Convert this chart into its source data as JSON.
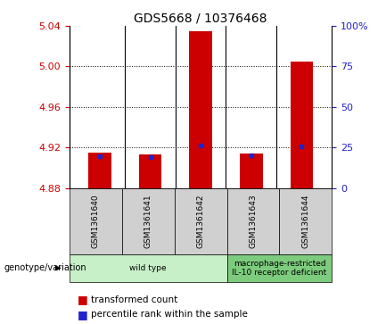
{
  "title": "GDS5668 / 10376468",
  "samples": [
    "GSM1361640",
    "GSM1361641",
    "GSM1361642",
    "GSM1361643",
    "GSM1361644"
  ],
  "red_values": [
    4.915,
    4.913,
    5.035,
    4.914,
    5.005
  ],
  "blue_values": [
    4.9115,
    4.9105,
    4.922,
    4.912,
    4.921
  ],
  "y_min": 4.88,
  "y_max": 5.04,
  "y_ticks": [
    4.88,
    4.92,
    4.96,
    5.0,
    5.04
  ],
  "right_y_ticks": [
    0,
    25,
    50,
    75,
    100
  ],
  "right_y_labels": [
    "0",
    "25",
    "50",
    "75",
    "100%"
  ],
  "bar_width": 0.45,
  "bar_color": "#cc0000",
  "blue_color": "#2222cc",
  "bg_color": "#ffffff",
  "plot_bg": "#ffffff",
  "groups": [
    {
      "label": "wild type",
      "indices": [
        0,
        1,
        2
      ],
      "color": "#c8f0c8"
    },
    {
      "label": "macrophage-restricted\nIL-10 receptor deficient",
      "indices": [
        3,
        4
      ],
      "color": "#7dcc7d"
    }
  ],
  "legend_label_red": "transformed count",
  "legend_label_blue": "percentile rank within the sample",
  "genotype_label": "genotype/variation",
  "left_tick_color": "#cc0000",
  "right_tick_color": "#2222cc",
  "sample_box_color": "#d0d0d0",
  "title_fontsize": 10,
  "tick_fontsize": 8,
  "sample_fontsize": 6.5,
  "legend_fontsize": 7.5
}
